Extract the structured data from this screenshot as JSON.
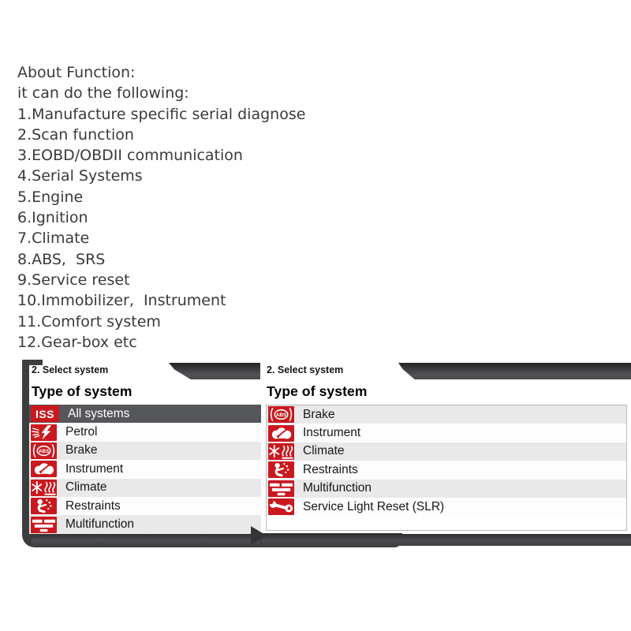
{
  "about": {
    "title": "About Function:",
    "subtitle": "it can do the following:",
    "items": [
      "1.Manufacture specific serial diagnose",
      "2.Scan function",
      "3.EOBD/OBDII communication",
      "4.Serial Systems",
      "5.Engine",
      "6.Ignition",
      "7.Climate",
      "8.ABS,  SRS",
      "9.Service reset",
      "10.Immobilizer,  Instrument",
      "11.Comfort system",
      "12.Gear-box etc"
    ]
  },
  "colors": {
    "accent_red": "#c9191f",
    "frame_dark": "#3c3d3f",
    "selected_row": "#56575a",
    "row_alt": "#e9e9e9"
  },
  "panels": [
    {
      "step_label": "2. Select system",
      "heading": "Type of system",
      "rows": [
        {
          "icon": "iss-icon",
          "badge_text": "ISS",
          "label": "All systems",
          "selected": true
        },
        {
          "icon": "petrol-icon",
          "label": "Petrol"
        },
        {
          "icon": "abs-icon",
          "label": "Brake"
        },
        {
          "icon": "instrument-icon",
          "label": "Instrument"
        },
        {
          "icon": "climate-icon",
          "label": "Climate"
        },
        {
          "icon": "restraints-icon",
          "label": "Restraints"
        },
        {
          "icon": "multifunction-icon",
          "label": "Multifunction"
        }
      ]
    },
    {
      "step_label": "2. Select system",
      "heading": "Type of system",
      "rows": [
        {
          "icon": "abs-icon",
          "label": "Brake"
        },
        {
          "icon": "instrument-icon",
          "label": "Instrument"
        },
        {
          "icon": "climate-icon",
          "label": "Climate"
        },
        {
          "icon": "restraints-icon",
          "label": "Restraints"
        },
        {
          "icon": "multifunction-icon",
          "label": "Multifunction"
        },
        {
          "icon": "slr-icon",
          "label": "Service Light Reset (SLR)"
        }
      ]
    }
  ]
}
